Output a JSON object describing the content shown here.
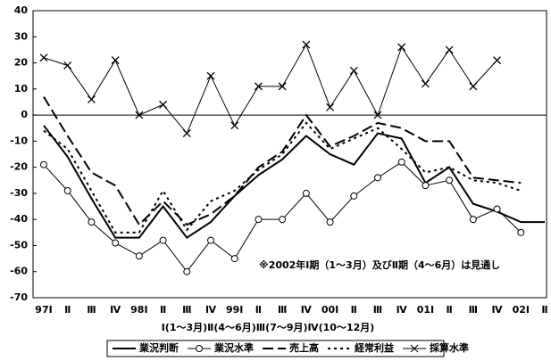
{
  "chart_data": {
    "type": "line",
    "categories": [
      "97Ⅰ",
      "Ⅱ",
      "Ⅲ",
      "Ⅳ",
      "98Ⅰ",
      "Ⅱ",
      "Ⅲ",
      "Ⅳ",
      "99Ⅰ",
      "Ⅱ",
      "Ⅲ",
      "Ⅳ",
      "00Ⅰ",
      "Ⅱ",
      "Ⅲ",
      "Ⅳ",
      "01Ⅰ",
      "Ⅱ",
      "Ⅲ",
      "Ⅳ",
      "02Ⅰ",
      "Ⅱ"
    ],
    "series": [
      {
        "name": "業況判断",
        "color": "#000000",
        "dash": "solid",
        "marker": "none",
        "width": 2,
        "values": [
          -4,
          -16,
          -32,
          -47,
          -47,
          -35,
          -47,
          -41,
          -31,
          -23,
          -17,
          -8,
          -15,
          -19,
          -7,
          -9,
          -26,
          -20,
          -34,
          -37,
          -41,
          -41
        ]
      },
      {
        "name": "業況水準",
        "color": "#000000",
        "dash": "solid",
        "marker": "circle",
        "width": 1,
        "values": [
          -19,
          -29,
          -41,
          -49,
          -54,
          -48,
          -60,
          -48,
          -55,
          -40,
          -40,
          -30,
          -41,
          -31,
          -24,
          -18,
          -27,
          -25,
          -40,
          -36,
          -45,
          null
        ]
      },
      {
        "name": "売上高",
        "color": "#000000",
        "dash": "long",
        "marker": "none",
        "width": 2,
        "values": [
          7,
          -8,
          -22,
          -27,
          -42,
          -33,
          -42,
          -38,
          -31,
          -20,
          -14,
          0,
          -12,
          -8,
          -3,
          -5,
          -10,
          -10,
          -24,
          -25,
          -26,
          null
        ]
      },
      {
        "name": "経常利益",
        "color": "#000000",
        "dash": "dot",
        "marker": "none",
        "width": 2,
        "values": [
          -6,
          -13,
          -29,
          -45,
          -45,
          -29,
          -44,
          -33,
          -29,
          -21,
          -15,
          -3,
          -13,
          -9,
          -5,
          -13,
          -22,
          -20,
          -25,
          -26,
          -29,
          null
        ]
      },
      {
        "name": "採算水準",
        "color": "#000000",
        "dash": "solid",
        "marker": "x",
        "width": 1,
        "values": [
          22,
          19,
          6,
          21,
          0,
          4,
          -7,
          15,
          -4,
          11,
          11,
          27,
          3,
          17,
          0,
          26,
          12,
          25,
          11,
          21,
          null,
          null
        ]
      }
    ],
    "ylim": [
      -70,
      40
    ],
    "yticks": [
      -70,
      -60,
      -50,
      -40,
      -30,
      -20,
      -10,
      0,
      10,
      20,
      30,
      40
    ],
    "zero_line": true,
    "annotation": "※2002年Ⅰ期（1～3月）及びⅡ期（4～6月）は見通し",
    "x_note": "Ⅰ(1～3月)Ⅱ(4～6月)Ⅲ(7～9月)Ⅳ(10～12月)"
  }
}
